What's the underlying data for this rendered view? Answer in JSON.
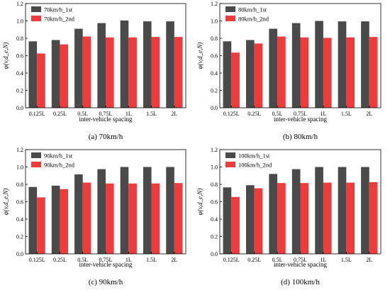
{
  "colors": {
    "first": "#4a4a4a",
    "second": "#ee3b3b",
    "axis": "#000000"
  },
  "chart_data": [
    {
      "type": "bar",
      "caption": "(a) 70km/h",
      "xlabel": "inter-vehicle spacing",
      "ylabel": "φ(v,d_e,N)",
      "ylim": [
        0.0,
        1.2
      ],
      "yticks": [
        "0.0",
        "0.2",
        "0.4",
        "0.6",
        "0.8",
        "1.0",
        "1.2"
      ],
      "categories": [
        "0.125L",
        "0.25L",
        "0.5L",
        "0.75L",
        "1L",
        "1.5L",
        "2L"
      ],
      "legend_position": "top-left",
      "series": [
        {
          "name": "70km/h_1st",
          "values": [
            0.765,
            0.78,
            0.91,
            0.975,
            1.005,
            0.995,
            0.995
          ]
        },
        {
          "name": "70km/h_2nd",
          "values": [
            0.625,
            0.73,
            0.82,
            0.81,
            0.81,
            0.815,
            0.815
          ]
        }
      ]
    },
    {
      "type": "bar",
      "caption": "(b) 80km/h",
      "xlabel": "inter-vehicle spacing",
      "ylabel": "φ(v,d_e,N)",
      "ylim": [
        0.0,
        1.2
      ],
      "yticks": [
        "0.0",
        "0.2",
        "0.4",
        "0.6",
        "0.8",
        "1.0",
        "1.2"
      ],
      "categories": [
        "0.125L",
        "0.25L",
        "0.5L",
        "0.75L",
        "1L",
        "1.5L",
        "2L"
      ],
      "legend_position": "top-left",
      "series": [
        {
          "name": "80km/h_1st",
          "values": [
            0.765,
            0.78,
            0.91,
            0.975,
            1.0,
            0.995,
            0.995
          ]
        },
        {
          "name": "80km/h_2nd",
          "values": [
            0.635,
            0.74,
            0.82,
            0.81,
            0.805,
            0.81,
            0.815
          ]
        }
      ]
    },
    {
      "type": "bar",
      "caption": "(c) 90km/h",
      "xlabel": "inter-vehicle spacing",
      "ylabel": "φ(v,d_e,N)",
      "ylim": [
        0.0,
        1.2
      ],
      "yticks": [
        "0.0",
        "0.2",
        "0.4",
        "0.6",
        "0.8",
        "1.0",
        "1.2"
      ],
      "categories": [
        "0.125L",
        "0.25L",
        "0.5L",
        "0.75L",
        "1L",
        "1.5L",
        "2L"
      ],
      "legend_position": "top-left",
      "series": [
        {
          "name": "90km/h_1st",
          "values": [
            0.77,
            0.785,
            0.915,
            0.975,
            1.0,
            1.0,
            1.0
          ]
        },
        {
          "name": "90km/h_2nd",
          "values": [
            0.65,
            0.745,
            0.82,
            0.81,
            0.81,
            0.81,
            0.815
          ]
        }
      ]
    },
    {
      "type": "bar",
      "caption": "(d) 100km/h",
      "xlabel": "inter-vehicle spacing",
      "ylabel": "φ(v,d_e,N)",
      "ylim": [
        0.0,
        1.2
      ],
      "yticks": [
        "0.0",
        "0.2",
        "0.4",
        "0.6",
        "0.8",
        "1.0",
        "1.2"
      ],
      "categories": [
        "0.125L",
        "0.25L",
        "0.5L",
        "0.75L",
        "1L",
        "1.5L",
        "2L"
      ],
      "legend_position": "top-left",
      "series": [
        {
          "name": "100km/h_1st",
          "values": [
            0.765,
            0.79,
            0.92,
            0.975,
            1.0,
            1.0,
            1.0
          ]
        },
        {
          "name": "100km/h_2nd",
          "values": [
            0.655,
            0.755,
            0.815,
            0.815,
            0.82,
            0.82,
            0.825
          ]
        }
      ]
    }
  ]
}
